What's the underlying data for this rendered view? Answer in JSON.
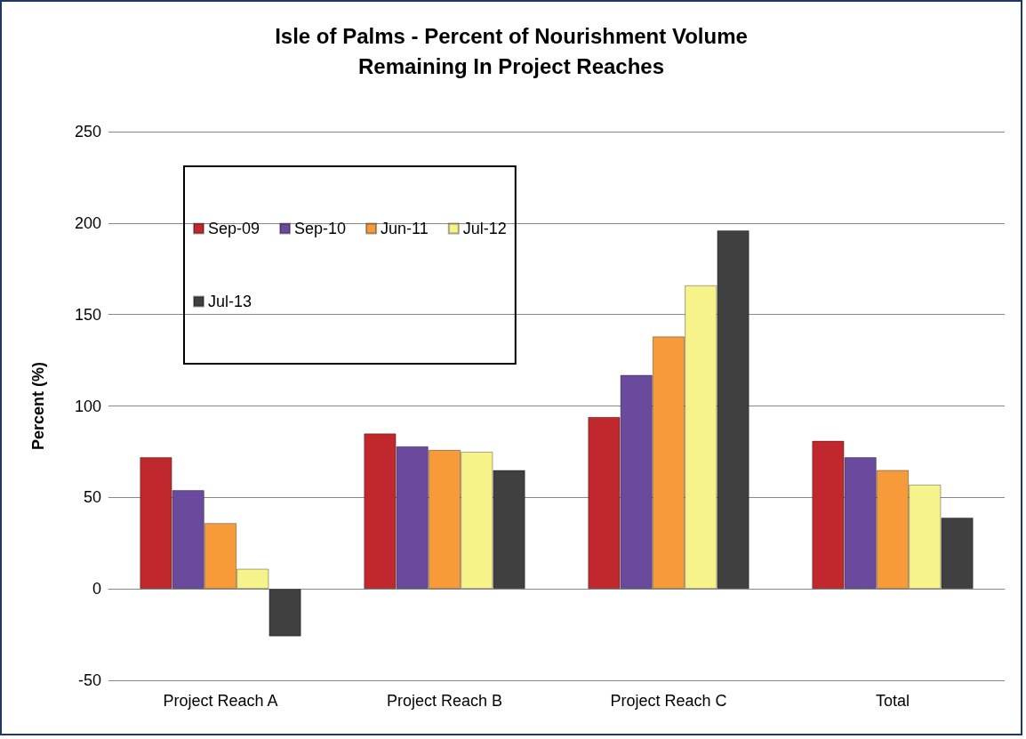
{
  "chart_data": {
    "type": "bar",
    "title": "Isle of Palms - Percent of Nourishment Volume\nRemaining In Project Reaches",
    "ylabel": "Percent (%)",
    "categories": [
      "Project Reach A",
      "Project Reach B",
      "Project Reach C",
      "Total"
    ],
    "series": [
      {
        "name": "Sep-09",
        "color": "#c0282d",
        "values": [
          72,
          85,
          94,
          81
        ]
      },
      {
        "name": "Sep-10",
        "color": "#6a4a9c",
        "values": [
          54,
          78,
          117,
          72
        ]
      },
      {
        "name": "Jun-11",
        "color": "#f79a3a",
        "values": [
          36,
          76,
          138,
          65
        ]
      },
      {
        "name": "Jul-12",
        "color": "#f5f38a",
        "values": [
          11,
          75,
          166,
          57
        ]
      },
      {
        "name": "Jul-13",
        "color": "#404040",
        "values": [
          -26,
          65,
          196,
          39
        ]
      }
    ],
    "ylim": [
      -50,
      250
    ],
    "yticks": [
      -50,
      0,
      50,
      100,
      150,
      200,
      250
    ],
    "grid": "y",
    "legend": "top left"
  }
}
